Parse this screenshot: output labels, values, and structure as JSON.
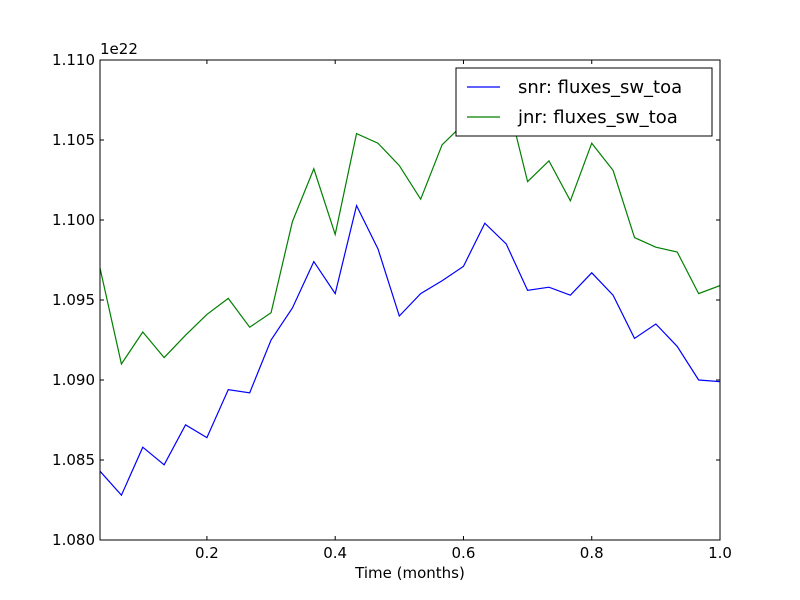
{
  "chart_data": {
    "type": "line",
    "title": "",
    "xlabel": "Time (months)",
    "ylabel": "",
    "offset_text": "1e22",
    "xlim": [
      0.0333,
      1.0
    ],
    "ylim": [
      1.08,
      1.11
    ],
    "grid": false,
    "legend_position": "upper right",
    "x_ticks": [
      0.2,
      0.4,
      0.6,
      0.8,
      1.0
    ],
    "x_tick_labels": [
      "0.2",
      "0.4",
      "0.6",
      "0.8",
      "1.0"
    ],
    "y_ticks": [
      1.08,
      1.085,
      1.09,
      1.095,
      1.1,
      1.105,
      1.11
    ],
    "y_tick_labels": [
      "1.080",
      "1.085",
      "1.090",
      "1.095",
      "1.100",
      "1.105",
      "1.110"
    ],
    "x": [
      0.0333,
      0.0667,
      0.1,
      0.1333,
      0.1667,
      0.2,
      0.2333,
      0.2667,
      0.3,
      0.3333,
      0.3667,
      0.4,
      0.4333,
      0.4667,
      0.5,
      0.5333,
      0.5667,
      0.6,
      0.6333,
      0.6667,
      0.7,
      0.7333,
      0.7667,
      0.8,
      0.8333,
      0.8667,
      0.9,
      0.9333,
      0.9667,
      1.0
    ],
    "series": [
      {
        "name": "snr: fluxes_sw_toa",
        "color": "#0000ff",
        "values": [
          1.0843,
          1.0828,
          1.0858,
          1.0847,
          1.0872,
          1.0864,
          1.0894,
          1.0892,
          1.0925,
          1.0945,
          1.0974,
          1.0954,
          1.1009,
          1.0982,
          1.094,
          1.0954,
          1.0962,
          1.0971,
          1.0998,
          1.0985,
          1.0956,
          1.0958,
          1.0953,
          1.0967,
          1.0953,
          1.0926,
          1.0935,
          1.0921,
          1.09,
          1.0899
        ]
      },
      {
        "name": "jnr: fluxes_sw_toa",
        "color": "#008000",
        "values": [
          1.097,
          1.091,
          1.093,
          1.0914,
          1.0928,
          1.0941,
          1.0951,
          1.0933,
          1.0942,
          1.0999,
          1.1032,
          1.0991,
          1.1054,
          1.1048,
          1.1034,
          1.1013,
          1.1047,
          1.106,
          1.1078,
          1.1078,
          1.1024,
          1.1037,
          1.1012,
          1.1048,
          1.1031,
          1.0989,
          1.0983,
          1.098,
          1.0954,
          1.0959
        ]
      }
    ]
  }
}
